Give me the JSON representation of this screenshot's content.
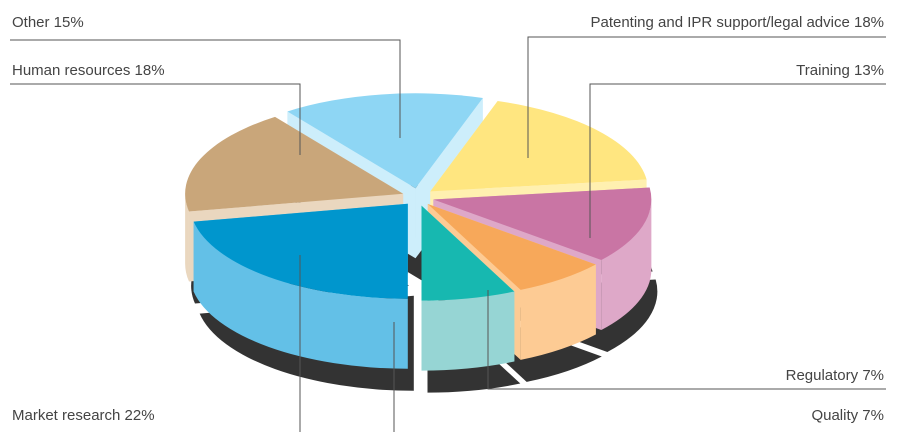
{
  "chart_data": {
    "type": "pie",
    "title": "",
    "categories": [
      "Other",
      "Patenting and IPR support/legal advice",
      "Training",
      "Regulatory",
      "Quality",
      "Market research",
      "Human resources"
    ],
    "values": [
      15,
      18,
      13,
      7,
      7,
      22,
      18
    ],
    "labels": [
      "Other 15%",
      "Patenting and IPR support/legal advice 18%",
      "Training 13%",
      "Regulatory 7%",
      "Quality 7%",
      "Market research 22%",
      "Human resources 18%"
    ],
    "colors": {
      "top": [
        "#8ed6f4",
        "#ffe680",
        "#c975a4",
        "#f7a85a",
        "#17b8b0",
        "#0096cd",
        "#c9a67a"
      ],
      "side": [
        "#cdeefb",
        "#fff0b0",
        "#dea8c8",
        "#fdcb94",
        "#96d5d4",
        "#63c0e7",
        "#ead7bf"
      ],
      "shadow": "#333333"
    },
    "legend": "none",
    "exploded": true
  }
}
